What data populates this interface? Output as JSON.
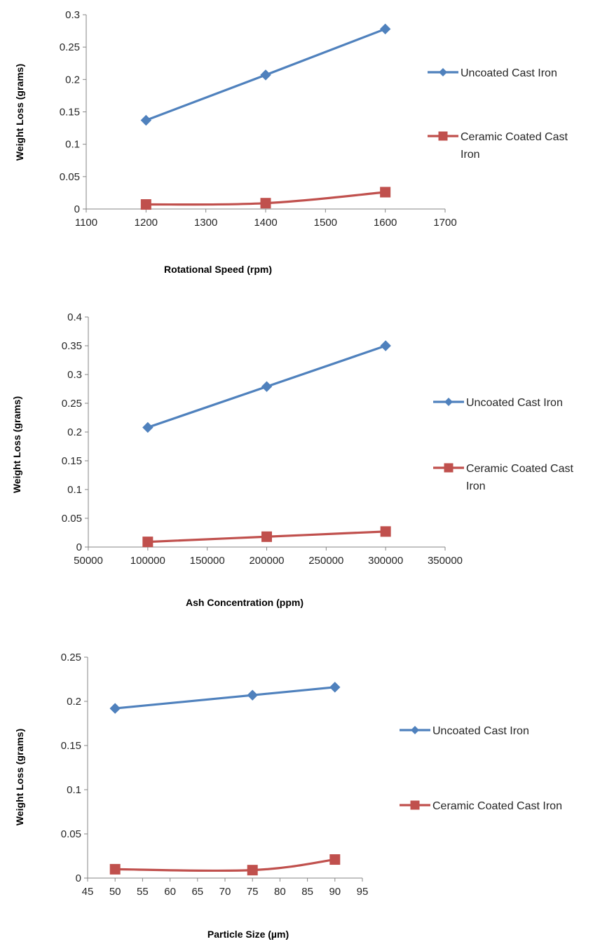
{
  "chart_data": [
    {
      "type": "line",
      "xlabel": "Rotational Speed (rpm)",
      "ylabel": "Weight Loss (grams)",
      "xlim": [
        1100,
        1700
      ],
      "ylim": [
        0,
        0.3
      ],
      "x_ticks": [
        "1100",
        "1200",
        "1300",
        "1400",
        "1500",
        "1600",
        "1700"
      ],
      "y_ticks": [
        "0",
        "0.05",
        "0.1",
        "0.15",
        "0.2",
        "0.25",
        "0.3"
      ],
      "grid": false,
      "legend_position": "right",
      "series": [
        {
          "name": "Uncoated Cast Iron",
          "name_lines": [
            "Uncoated Cast Iron"
          ],
          "color": "#4F81BD",
          "marker": "diamond",
          "x": [
            1200,
            1400,
            1600
          ],
          "y": [
            0.137,
            0.207,
            0.278
          ]
        },
        {
          "name": "Ceramic Coated Cast Iron",
          "name_lines": [
            "Ceramic Coated Cast",
            "Iron"
          ],
          "color": "#C0504D",
          "marker": "square",
          "x": [
            1200,
            1400,
            1600
          ],
          "y": [
            0.007,
            0.009,
            0.026
          ]
        }
      ]
    },
    {
      "type": "line",
      "xlabel": "Ash Concentration (ppm)",
      "ylabel": "Weight Loss (grams)",
      "xlim": [
        50000,
        350000
      ],
      "ylim": [
        0,
        0.4
      ],
      "x_ticks": [
        "50000",
        "100000",
        "150000",
        "200000",
        "250000",
        "300000",
        "350000"
      ],
      "y_ticks": [
        "0",
        "0.05",
        "0.1",
        "0.15",
        "0.2",
        "0.25",
        "0.3",
        "0.35",
        "0.4"
      ],
      "grid": false,
      "legend_position": "right",
      "series": [
        {
          "name": "Uncoated Cast Iron",
          "name_lines": [
            "Uncoated Cast Iron"
          ],
          "color": "#4F81BD",
          "marker": "diamond",
          "x": [
            100000,
            200000,
            300000
          ],
          "y": [
            0.208,
            0.279,
            0.35
          ]
        },
        {
          "name": "Ceramic Coated Cast Iron",
          "name_lines": [
            "Ceramic Coated Cast",
            "Iron"
          ],
          "color": "#C0504D",
          "marker": "square",
          "x": [
            100000,
            200000,
            300000
          ],
          "y": [
            0.009,
            0.018,
            0.027
          ]
        }
      ]
    },
    {
      "type": "line",
      "xlabel": "Particle Size (µm)",
      "ylabel": "Weight Loss (grams)",
      "xlim": [
        45,
        95
      ],
      "ylim": [
        0,
        0.25
      ],
      "x_ticks": [
        "45",
        "50",
        "55",
        "60",
        "65",
        "70",
        "75",
        "80",
        "85",
        "90",
        "95"
      ],
      "y_ticks": [
        "0",
        "0.05",
        "0.1",
        "0.15",
        "0.2",
        "0.25"
      ],
      "grid": false,
      "legend_position": "right",
      "series": [
        {
          "name": "Uncoated Cast Iron",
          "name_lines": [
            "Uncoated Cast Iron"
          ],
          "color": "#4F81BD",
          "marker": "diamond",
          "x": [
            50,
            75,
            90
          ],
          "y": [
            0.192,
            0.207,
            0.216
          ]
        },
        {
          "name": "Ceramic Coated Cast Iron",
          "name_lines": [
            "Ceramic Coated Cast Iron"
          ],
          "color": "#C0504D",
          "marker": "square",
          "x": [
            50,
            75,
            90
          ],
          "y": [
            0.01,
            0.009,
            0.021
          ]
        }
      ]
    }
  ]
}
